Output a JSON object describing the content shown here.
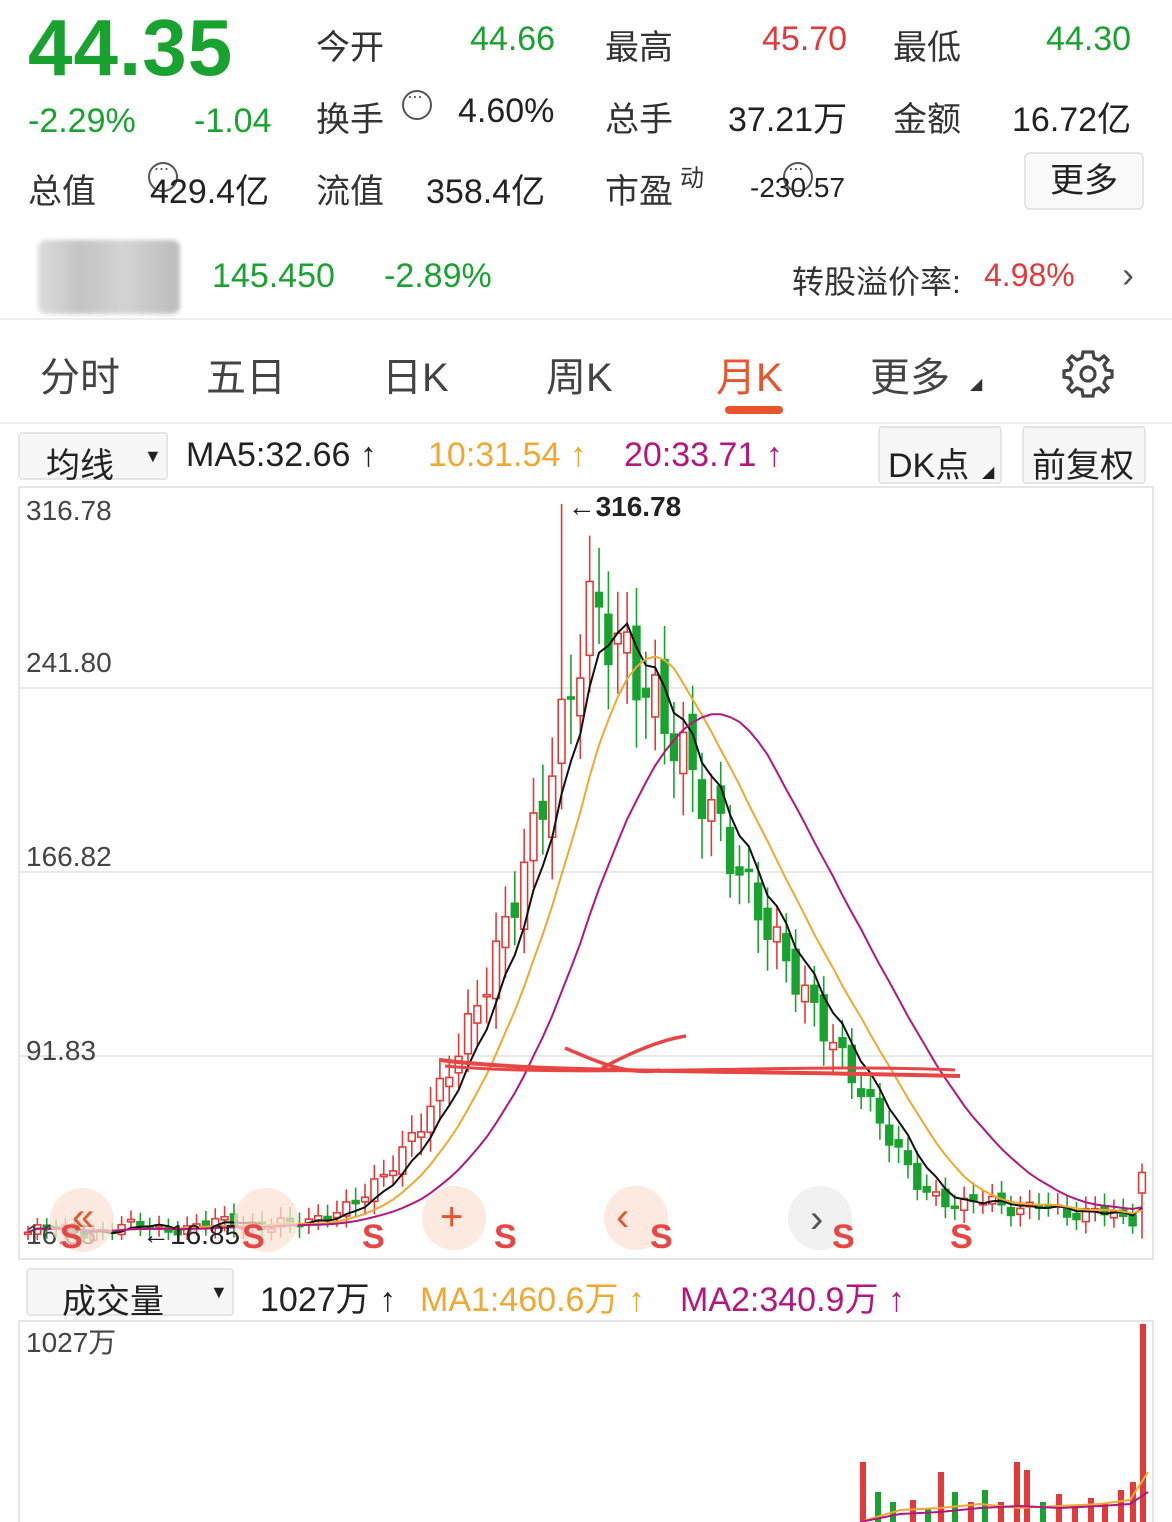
{
  "quote": {
    "price": "44.35",
    "change_pct": "-2.29%",
    "change": "-1.04",
    "open_label": "今开",
    "open": "44.66",
    "high_label": "最高",
    "high": "45.70",
    "low_label": "最低",
    "low": "44.30",
    "turnover_label": "换手",
    "turnover": "4.60%",
    "volume_label": "总手",
    "volume": "37.21万",
    "amount_label": "金额",
    "amount": "16.72亿",
    "mktcap_label": "总值",
    "mktcap": "429.4亿",
    "float_label": "流值",
    "float_cap": "358.4亿",
    "pe_label": "市盈",
    "pe_sup": "动",
    "pe": "-230.57",
    "more_label": "更多"
  },
  "bond": {
    "price": "145.450",
    "change_pct": "-2.89%",
    "premium_label": "转股溢价率:",
    "premium": "4.98%"
  },
  "tabs": [
    {
      "label": "分时"
    },
    {
      "label": "五日"
    },
    {
      "label": "日K"
    },
    {
      "label": "周K"
    },
    {
      "label": "月K",
      "active": true
    },
    {
      "label": "更多"
    }
  ],
  "indicator": {
    "select_label": "均线",
    "ma5": "MA5:32.66",
    "ma10": "10:31.54",
    "ma20": "20:33.71",
    "dk_label": "DK点",
    "adjust_label": "前复权"
  },
  "volume_panel": {
    "select_label": "成交量",
    "vol": "1027万",
    "ma1": "MA1:460.6万",
    "ma2": "MA2:340.9万",
    "axis_top": "1027万"
  },
  "chart_data": {
    "type": "candlestick",
    "y_ticks": [
      "316.78",
      "241.80",
      "166.82",
      "91.83",
      "16.85"
    ],
    "ylim": [
      16.85,
      316.78
    ],
    "max_label": "316.78",
    "min_label": "16.85",
    "signal_labels": [
      "S",
      "S",
      "S",
      "S",
      "S",
      "S",
      "S"
    ],
    "colors": {
      "up": "#e23a3a",
      "down": "#1aa231",
      "ma5": "#111111",
      "ma10": "#f0a830",
      "ma20": "#b3177f",
      "vol_ma1": "#f0a830",
      "vol_ma2": "#b3177f"
    }
  }
}
